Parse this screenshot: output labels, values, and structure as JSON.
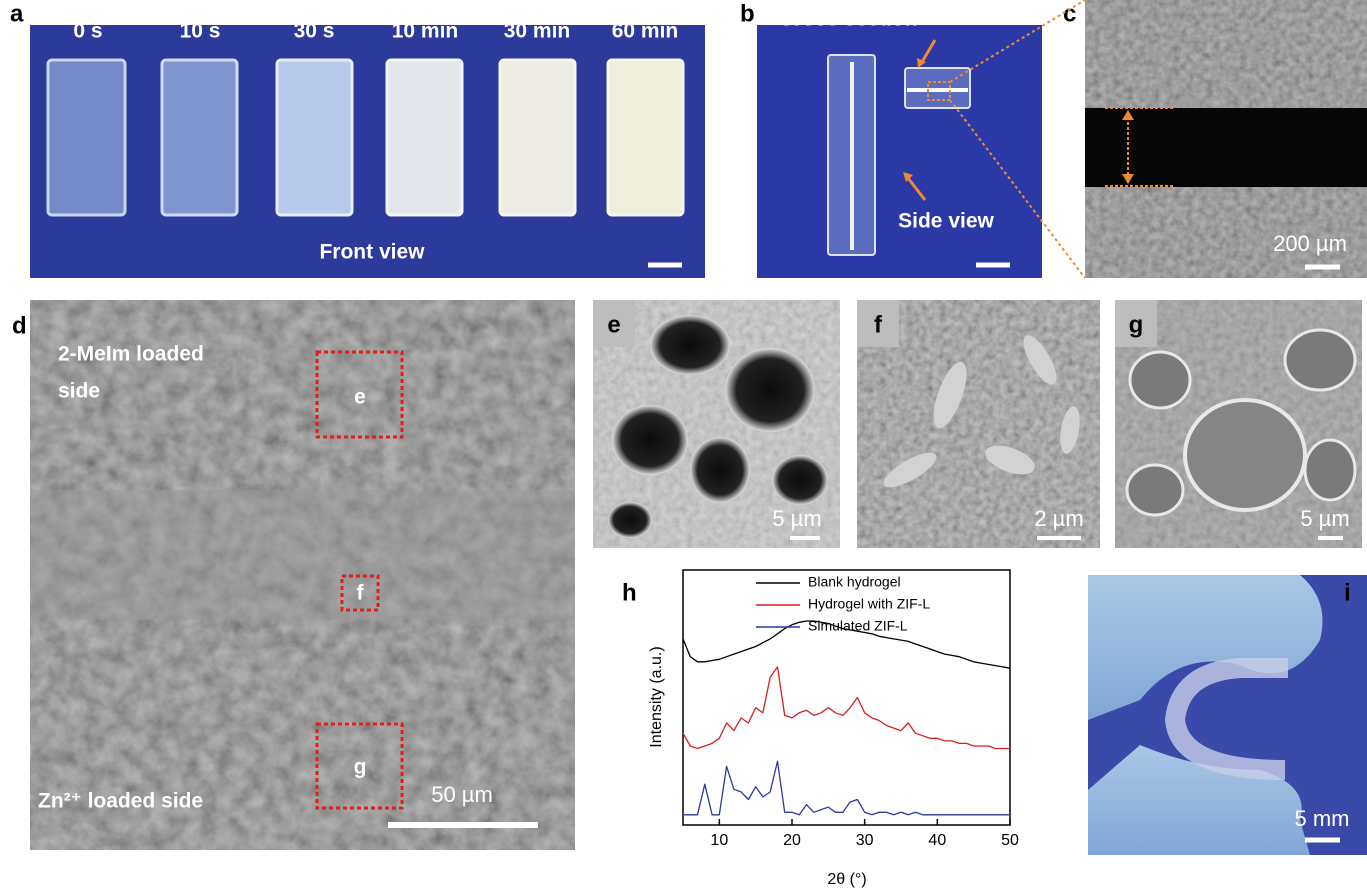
{
  "figure": {
    "panels": {
      "a": {
        "label": "a",
        "times": [
          "0 s",
          "10 s",
          "30 s",
          "10 min",
          "30 min",
          "60 min"
        ],
        "caption": "Front view"
      },
      "b": {
        "label": "b",
        "cross_section": "Cross section",
        "side_view": "Side view"
      },
      "c": {
        "label": "c",
        "scale": "200 µm"
      },
      "d": {
        "label": "d",
        "top_side": [
          "2-MeIm loaded",
          "side"
        ],
        "boxes": [
          "e",
          "f",
          "g"
        ],
        "bottom_side": "Zn²⁺ loaded side",
        "scale": "50 µm"
      },
      "e": {
        "label": "e",
        "scale": "5 µm"
      },
      "f": {
        "label": "f",
        "scale": "2 µm"
      },
      "g": {
        "label": "g",
        "scale": "5 µm"
      },
      "h": {
        "label": "h"
      },
      "i": {
        "label": "i",
        "scale": "5 mm"
      }
    }
  },
  "chart_data": {
    "type": "line",
    "x_label": "2θ (°)",
    "y_label": "Intensity (a.u.)",
    "x": [
      5,
      6,
      7,
      8,
      9,
      10,
      11,
      12,
      13,
      14,
      15,
      16,
      17,
      18,
      19,
      20,
      21,
      22,
      23,
      24,
      25,
      26,
      27,
      28,
      29,
      30,
      31,
      32,
      33,
      34,
      35,
      36,
      37,
      38,
      39,
      40,
      41,
      42,
      43,
      44,
      45,
      46,
      47,
      48,
      49,
      50
    ],
    "xlim": [
      5,
      50
    ],
    "xticks": [
      10,
      20,
      30,
      40,
      50
    ],
    "ylim": [
      0,
      100
    ],
    "series": [
      {
        "name": "Blank hydrogel",
        "color": "#000000",
        "values": [
          73,
          66,
          64,
          64,
          64.5,
          65,
          66,
          67,
          68,
          69,
          70,
          71.5,
          73,
          75,
          77,
          78.5,
          79.5,
          80,
          80,
          79.5,
          79,
          78,
          77,
          76.5,
          76,
          75.5,
          75,
          74,
          73.5,
          73,
          72.5,
          72,
          71,
          70,
          69,
          68,
          67,
          66.5,
          66,
          65,
          64,
          63.5,
          63,
          62.5,
          62,
          61.5
        ]
      },
      {
        "name": "Hydrogel with ZIF-L",
        "color": "#d42020",
        "values": [
          36,
          31,
          30,
          31,
          32,
          34,
          40,
          37,
          42,
          40,
          46,
          44,
          58,
          62,
          43,
          42,
          44,
          45,
          43,
          44,
          46,
          44,
          43,
          46,
          50,
          44,
          42,
          41,
          39,
          38,
          37,
          40,
          36,
          35,
          34,
          34,
          33,
          33,
          32,
          32,
          31,
          31,
          31,
          30,
          30,
          30
        ]
      },
      {
        "name": "Simulated ZIF-L",
        "color": "#2a3aa0",
        "values": [
          4,
          4,
          4,
          16,
          4,
          4,
          23,
          14,
          13,
          10,
          15,
          11,
          13,
          25,
          5,
          5,
          4,
          8,
          5,
          6,
          7,
          5,
          5,
          9,
          10,
          5,
          4,
          5,
          5,
          4,
          5,
          4,
          5,
          4,
          4,
          4,
          4,
          4,
          4,
          4,
          4,
          4,
          4,
          4,
          4,
          4
        ]
      }
    ]
  }
}
